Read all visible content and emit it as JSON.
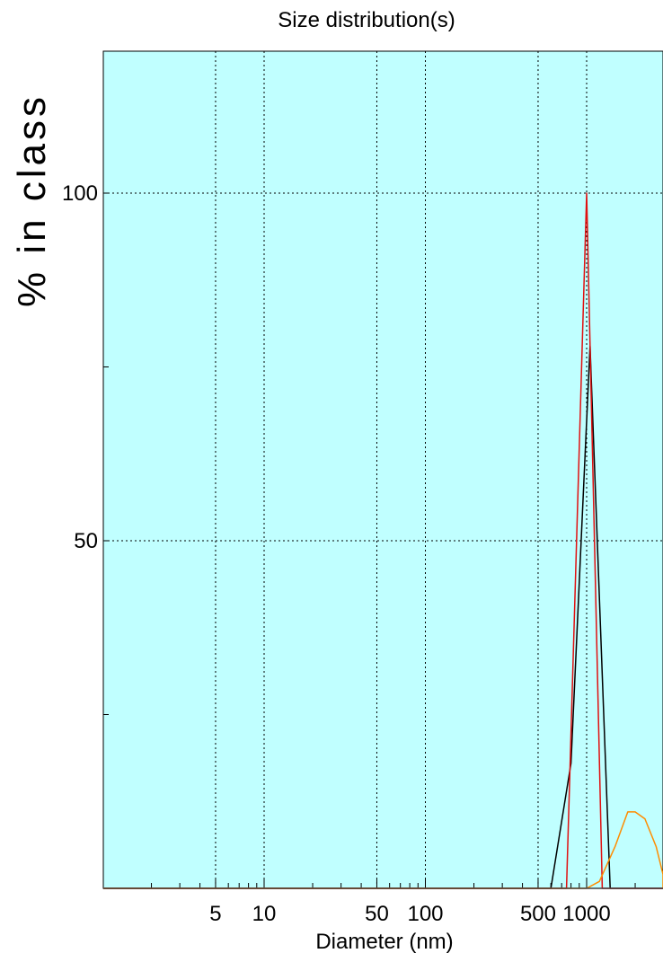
{
  "chart_data": {
    "type": "line",
    "title": "Size distribution(s)",
    "xlabel": "Diameter (nm)",
    "ylabel": "% in class",
    "x_scale": "log",
    "xlim": [
      0.6,
      5000
    ],
    "ylim": [
      0,
      120
    ],
    "x_tick_labels": [
      "5",
      "10",
      "50",
      "100",
      "500",
      "1000"
    ],
    "x_tick_values": [
      5,
      10,
      50,
      100,
      500,
      1000
    ],
    "y_tick_labels": [
      "50",
      "100"
    ],
    "y_tick_values": [
      50,
      100
    ],
    "grid": true,
    "background_color": "#c0ffff",
    "series": [
      {
        "color": "#000000",
        "x": [
          0.6,
          600,
          800,
          1050,
          1400,
          1500,
          5000
        ],
        "y": [
          0,
          0,
          18,
          78,
          0,
          0,
          0
        ]
      },
      {
        "color": "#e01010",
        "x": [
          0.6,
          750,
          1000,
          1250,
          5000
        ],
        "y": [
          0,
          0,
          100,
          0,
          0
        ]
      },
      {
        "color": "#ff8c00",
        "x": [
          0.6,
          1000,
          1200,
          1500,
          1800,
          2000,
          2300,
          2700,
          3200,
          3800,
          5000
        ],
        "y": [
          0,
          0,
          1,
          6,
          11,
          11,
          10,
          6,
          2,
          0,
          0
        ]
      }
    ]
  }
}
